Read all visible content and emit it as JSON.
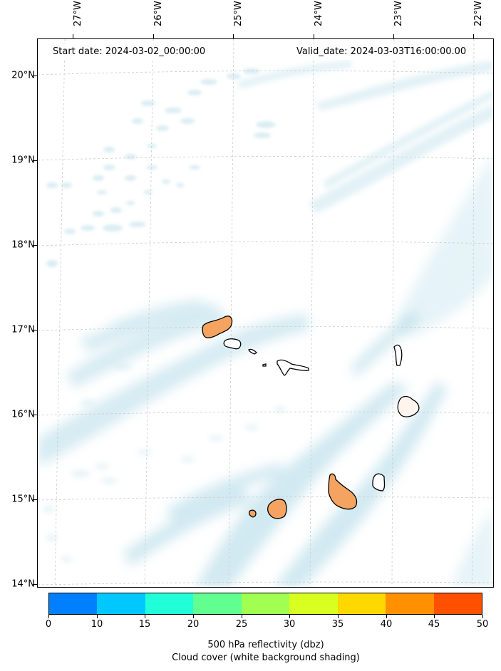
{
  "map": {
    "start_label": "Start date: 2024-03-02_00:00:00",
    "valid_label": "Valid_date: 2024-03-03T16:00:00.00",
    "longitudes": [
      "27°W",
      "26°W",
      "25°W",
      "24°W",
      "23°W",
      "22°W"
    ],
    "latitudes": [
      "20°N",
      "19°N",
      "18°N",
      "17°N",
      "16°N",
      "15°N",
      "14°N"
    ],
    "cloud_color": "#add8e6",
    "land_outline_color": "#000000",
    "reflectivity_color": "#f4a460"
  },
  "colorbar": {
    "ticks": [
      "0",
      "10",
      "15",
      "20",
      "25",
      "30",
      "35",
      "40",
      "45",
      "50"
    ],
    "colors": [
      "#0080ff",
      "#00c8ff",
      "#20ffd8",
      "#60ff90",
      "#a0ff50",
      "#d8ff20",
      "#ffd800",
      "#ff9000",
      "#ff5000"
    ],
    "caption_line1": "500 hPa reflectivity (dbz)",
    "caption_line2": "Cloud cover (white background shading)"
  }
}
